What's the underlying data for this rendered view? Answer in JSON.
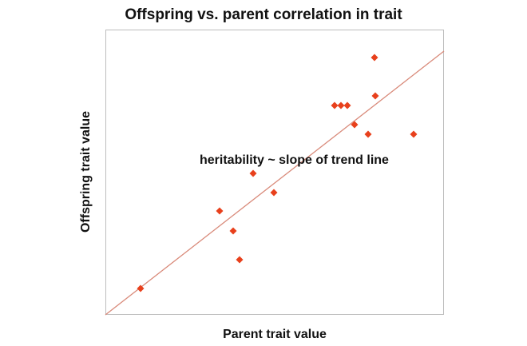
{
  "chart_data": {
    "type": "scatter",
    "title": "Offspring vs. parent correlation in trait",
    "xlabel": "Parent trait value",
    "ylabel": "Offspring trait value",
    "annotation": "heritability ~ slope of trend line",
    "grid": false,
    "legend": "none",
    "marker_color": "#e8401c",
    "trendline_color": "#d98a7a",
    "x": [
      44,
      143,
      160,
      168,
      185,
      211,
      287,
      295,
      303,
      312,
      329,
      337,
      338,
      386
    ],
    "y": [
      33,
      130,
      105,
      69,
      177,
      153,
      262,
      262,
      262,
      238,
      226,
      322,
      274,
      226
    ],
    "trend_line": {
      "x": [
        0,
        424
      ],
      "y": [
        0,
        330
      ]
    },
    "xlim": [
      0,
      424
    ],
    "ylim": [
      0,
      357
    ]
  }
}
